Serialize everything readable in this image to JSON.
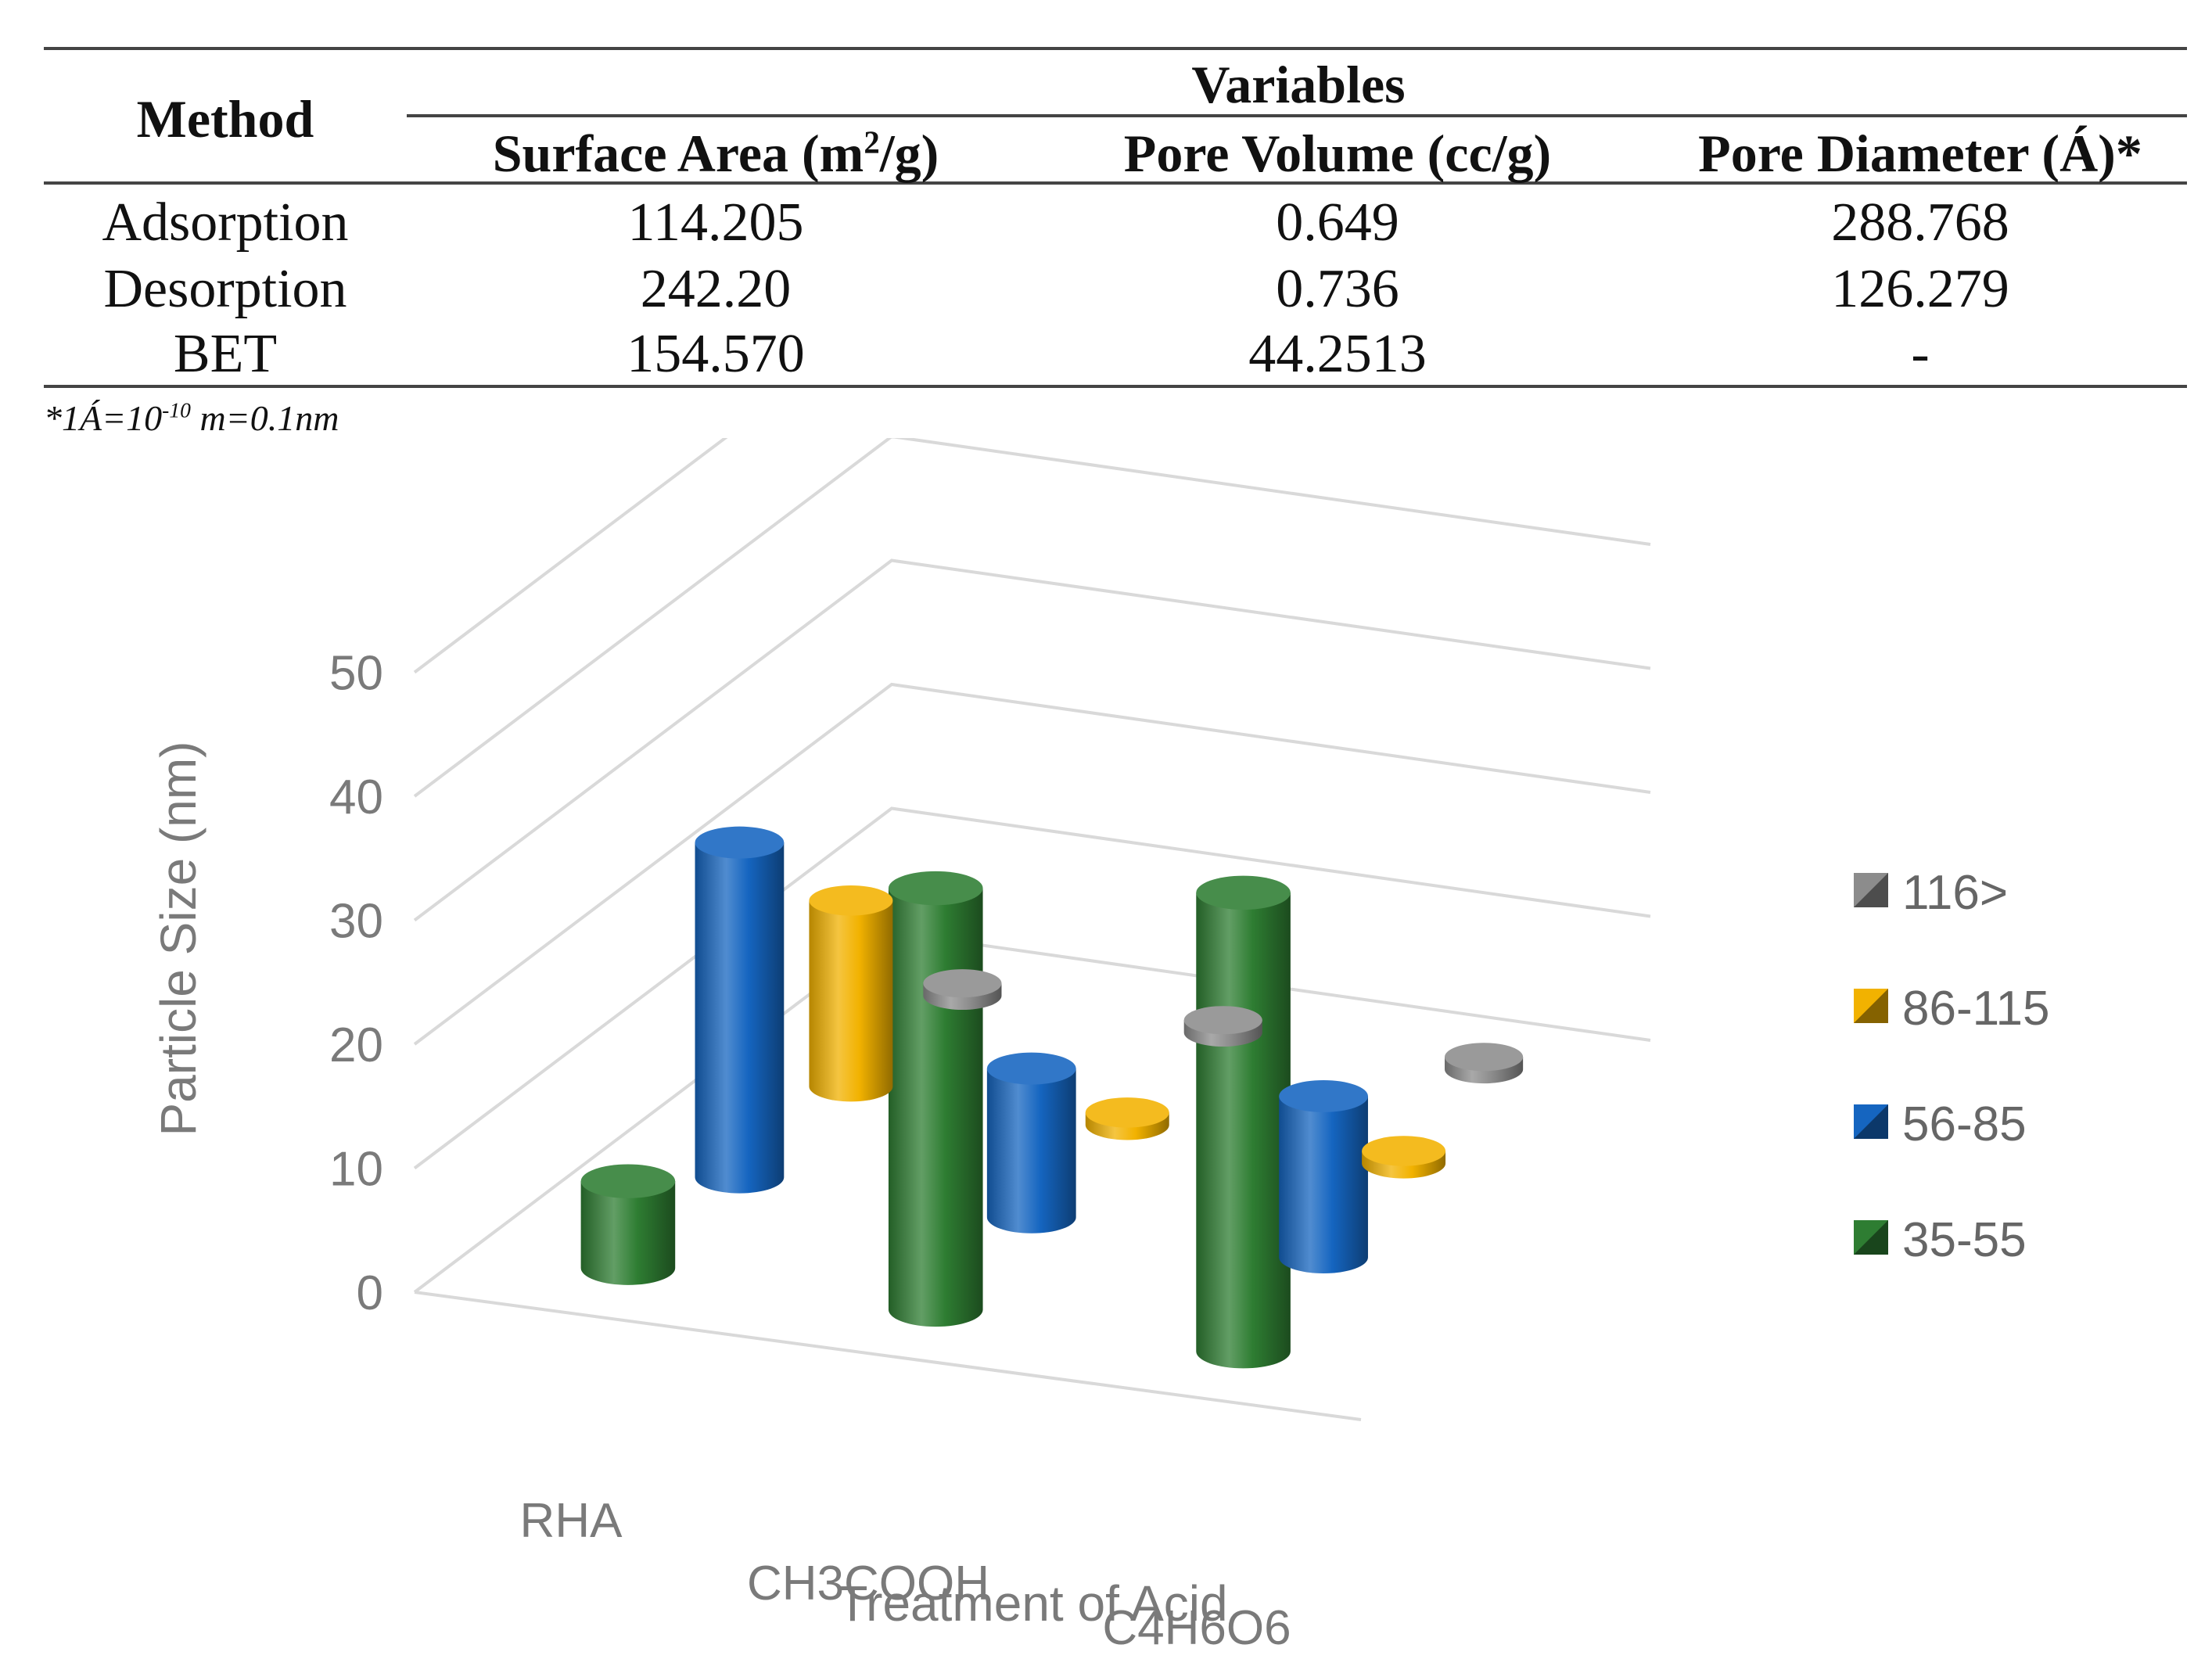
{
  "table": {
    "method_header": "Method",
    "group_header": "Variables",
    "columns": [
      {
        "name": "Surface Area (m",
        "sup": "2",
        "suffix": "/g)"
      },
      {
        "name": "Pore Volume (cc/g)",
        "sup": "",
        "suffix": ""
      },
      {
        "name": "Pore Diameter (Á)*",
        "sup": "",
        "suffix": ""
      }
    ],
    "rows": [
      {
        "method": "Adsorption",
        "values": [
          "114.205",
          "0.649",
          "288.768"
        ]
      },
      {
        "method": "Desorption",
        "values": [
          "242.20",
          "0.736",
          "126.279"
        ]
      },
      {
        "method": "BET",
        "values": [
          "154.570",
          "44.2513",
          "-"
        ]
      }
    ],
    "footnote": {
      "pre": "*1Á=10",
      "sup": "-10",
      "post": " m=0.1nm"
    }
  },
  "chart_data": {
    "type": "bar",
    "subtype": "3d-cylinder",
    "title": "",
    "xlabel": "Treatment of Acid",
    "ylabel": "Particle Size (nm)",
    "ylim": [
      0,
      50
    ],
    "yticks": [
      0,
      10,
      20,
      30,
      40,
      50
    ],
    "categories": [
      "RHA",
      "CH3COOH",
      "C4H6O6"
    ],
    "series": [
      {
        "name": "116>",
        "color": "#8c8c8c",
        "values": [
          1,
          1,
          1
        ]
      },
      {
        "name": "86-115",
        "color": "#f2b200",
        "values": [
          15,
          1,
          1
        ]
      },
      {
        "name": "56-85",
        "color": "#1565c0",
        "values": [
          27,
          12,
          13
        ]
      },
      {
        "name": "35-55",
        "color": "#2e7d32",
        "values": [
          7,
          34,
          37
        ]
      }
    ],
    "legend_position": "right",
    "legend_order": [
      "116>",
      "86-115",
      "56-85",
      "35-55"
    ]
  }
}
